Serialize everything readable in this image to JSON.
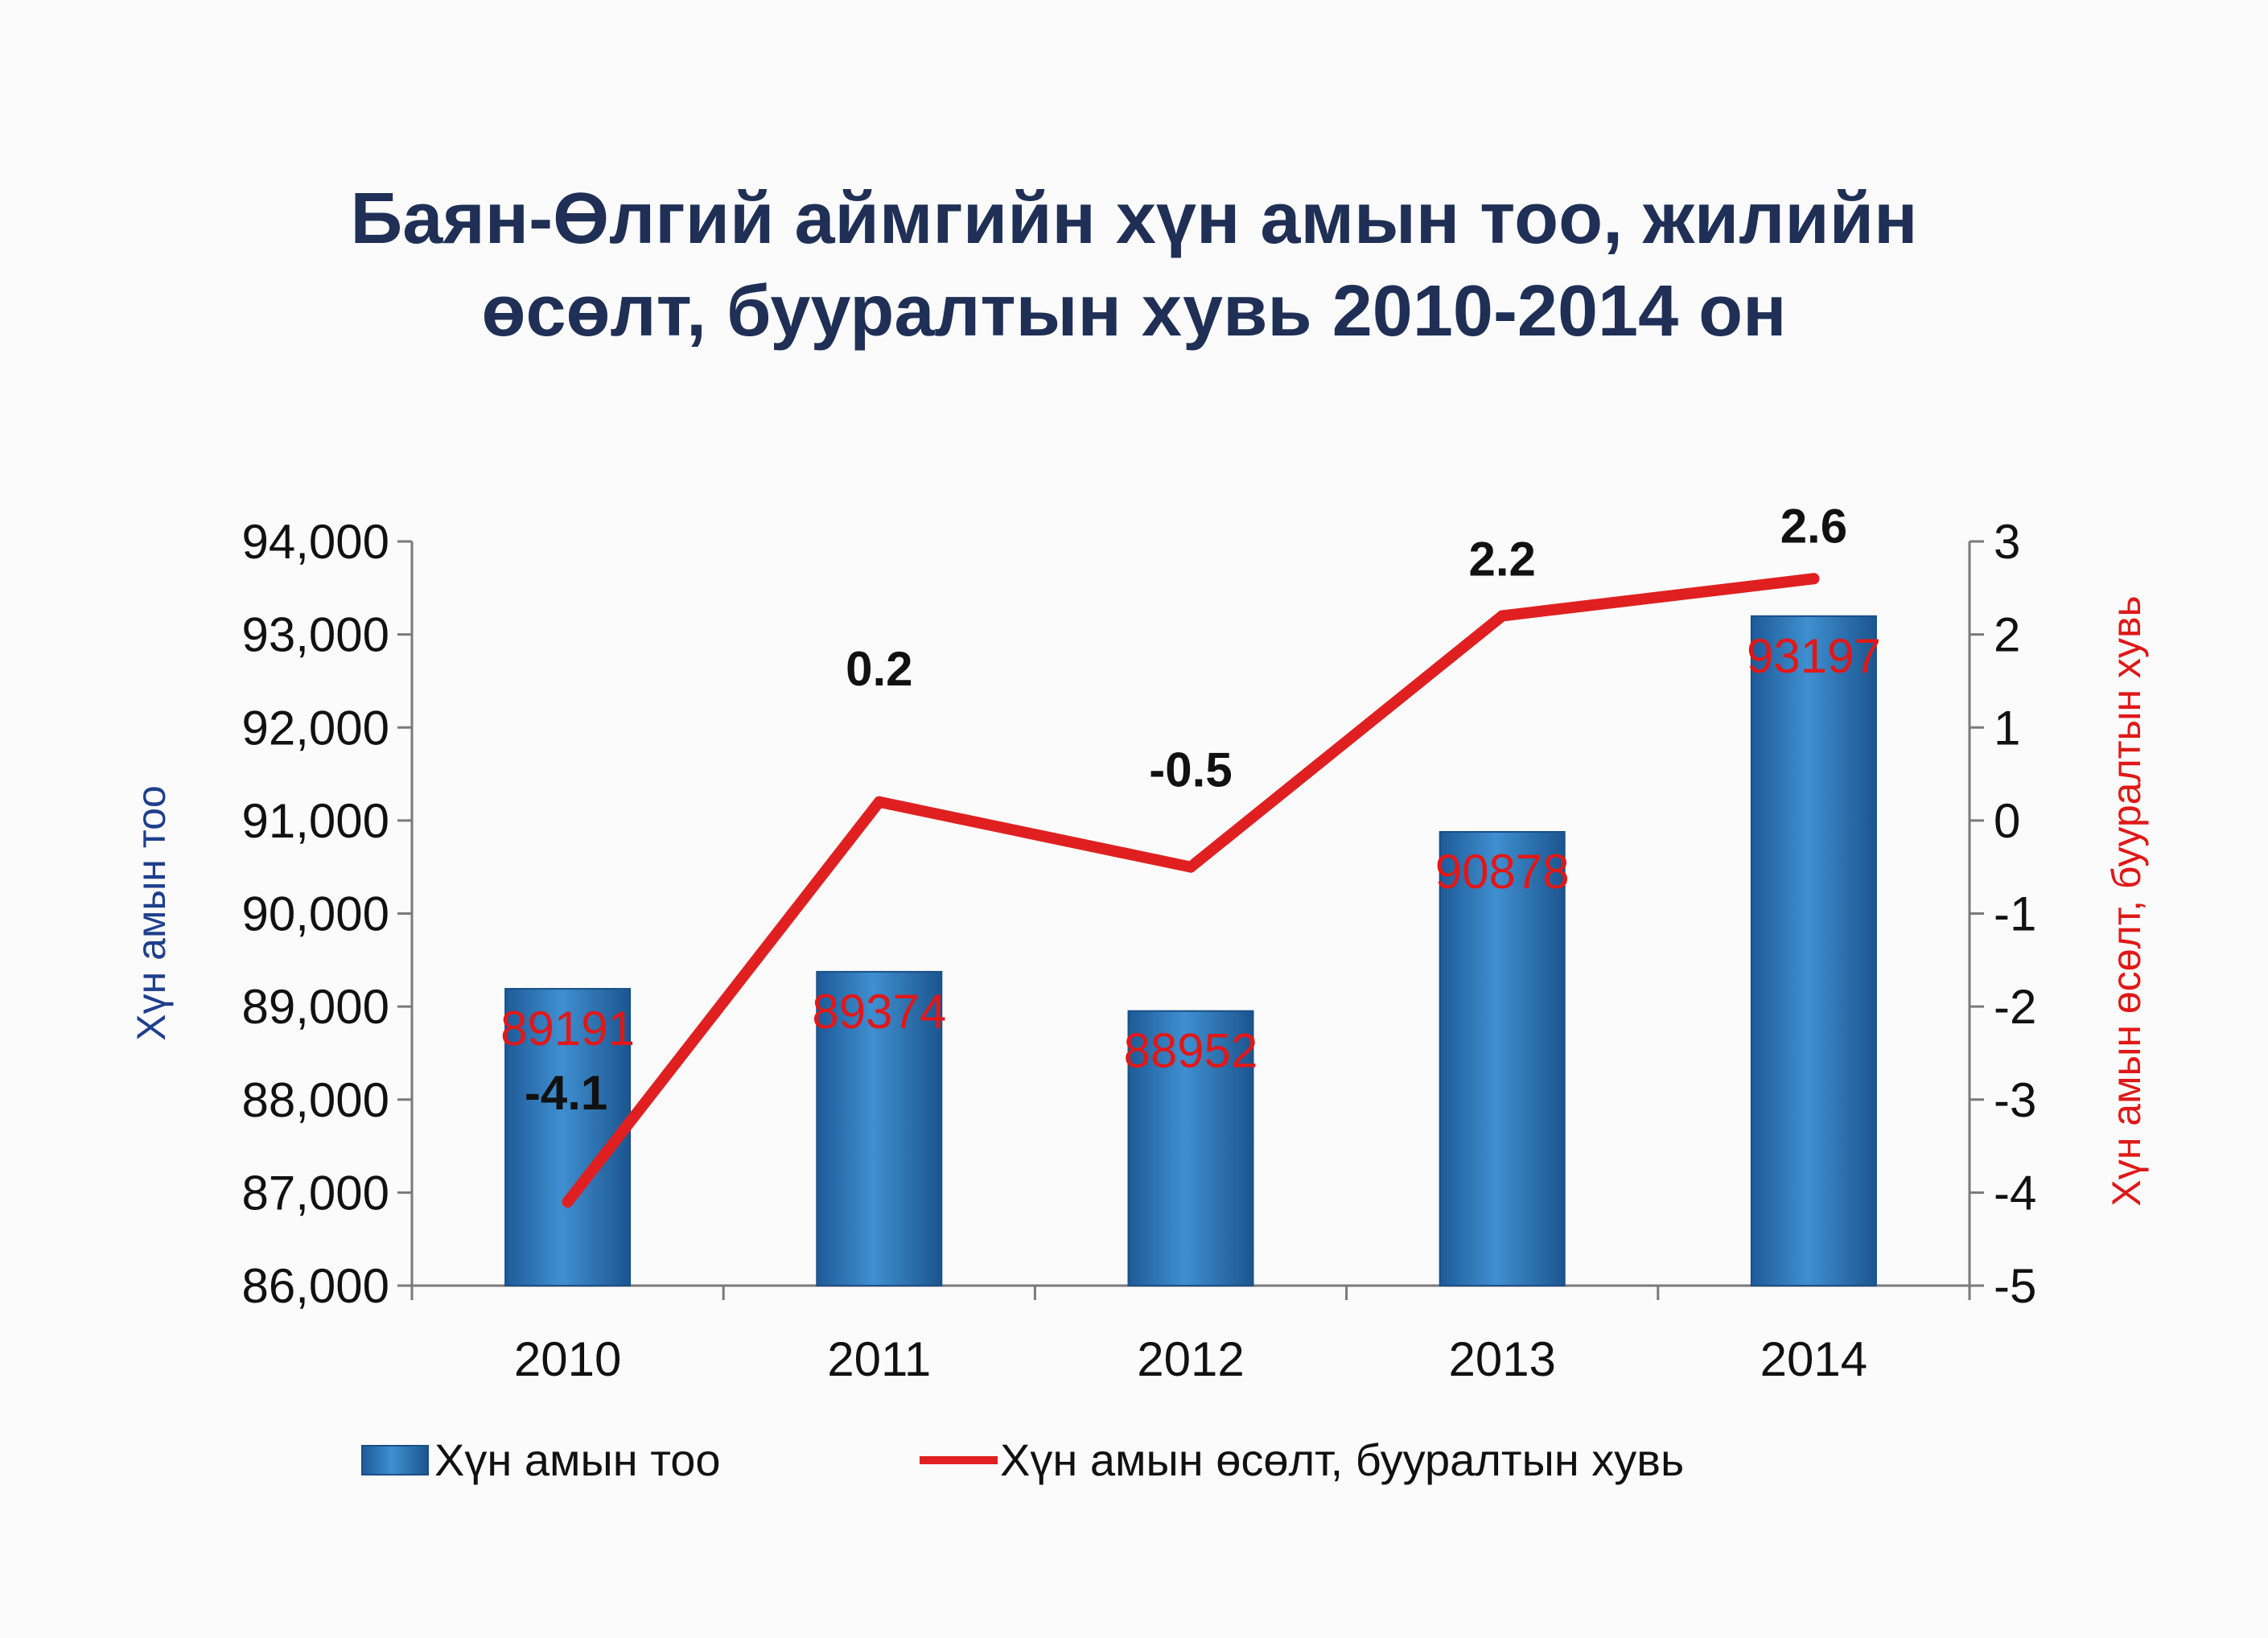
{
  "chart_data": {
    "type": "bar+line",
    "title_lines": [
      "Баян-Өлгий аймгийн хүн амын тоо, жилийн",
      "өсөлт, бууралтын хувь 2010-2014 он"
    ],
    "categories": [
      "2010",
      "2011",
      "2012",
      "2013",
      "2014"
    ],
    "series": [
      {
        "name": "Хүн амын тоо",
        "type": "bar",
        "axis": "left",
        "values": [
          89191,
          89374,
          88952,
          90878,
          93197
        ],
        "labels": [
          "89191",
          "89374",
          "88952",
          "90878",
          "93197"
        ]
      },
      {
        "name": "Хүн амын өсөлт, бууралтын хувь",
        "type": "line",
        "axis": "right",
        "values": [
          -4.1,
          0.2,
          -0.5,
          2.2,
          2.6
        ],
        "labels": [
          "-4.1",
          "0.2",
          "-0.5",
          "2.2",
          "2.6"
        ]
      }
    ],
    "ylabel": "Хүн амын тоо",
    "y2label": "Хүн амын өсөлт, бууралтын хувь",
    "ylim": [
      86000,
      94000
    ],
    "y2lim": [
      -5,
      3
    ],
    "yticks": [
      "86,000",
      "87,000",
      "88,000",
      "89,000",
      "90,000",
      "91,000",
      "92,000",
      "93,000",
      "94,000"
    ],
    "y2ticks": [
      "-5",
      "-4",
      "-3",
      "-2",
      "-1",
      "0",
      "1",
      "2",
      "3"
    ],
    "legend": "bottom",
    "colors": {
      "bar": "#2f7abf",
      "line": "#e02020",
      "bar_label": "#e01818",
      "line_label": "#111111",
      "axis_title_left": "#1f3f8c",
      "axis_title_right": "#e01818"
    }
  }
}
